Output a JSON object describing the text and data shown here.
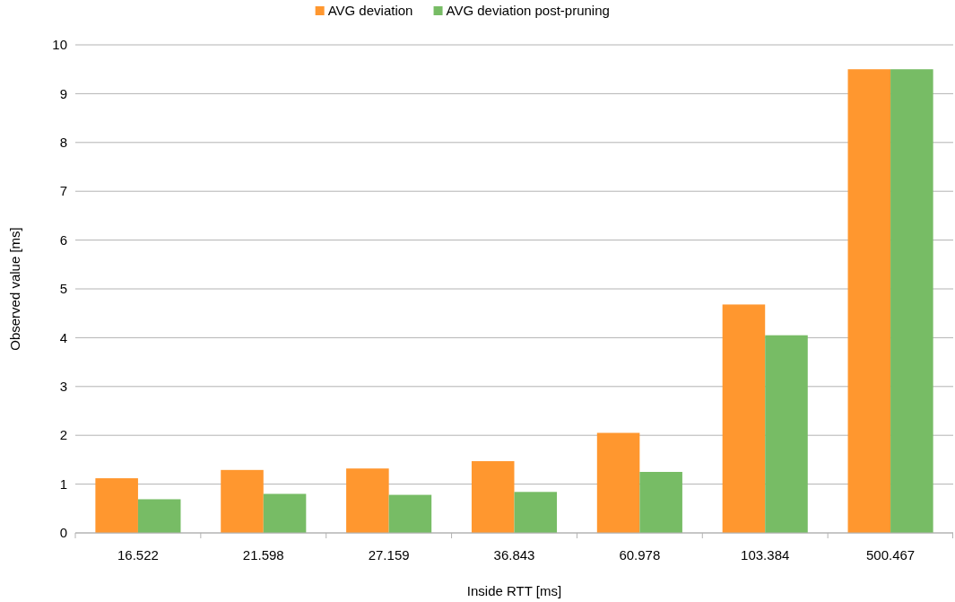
{
  "chart_data": {
    "type": "bar",
    "xlabel": "Inside RTT [ms]",
    "ylabel": "Observed value [ms]",
    "categories": [
      "16.522",
      "21.598",
      "27.159",
      "36.843",
      "60.978",
      "103.384",
      "500.467"
    ],
    "series": [
      {
        "name": "AVG deviation",
        "color": "#ff972f",
        "values": [
          1.12,
          1.29,
          1.32,
          1.47,
          2.05,
          4.68,
          9.5
        ]
      },
      {
        "name": "AVG deviation post-pruning",
        "color": "#77bc65",
        "values": [
          0.69,
          0.8,
          0.78,
          0.84,
          1.25,
          4.05,
          9.5
        ]
      }
    ],
    "ylim": [
      0,
      10
    ],
    "yticks": [
      0,
      1,
      2,
      3,
      4,
      5,
      6,
      7,
      8,
      9,
      10
    ],
    "grid": "y",
    "legend": "top"
  }
}
